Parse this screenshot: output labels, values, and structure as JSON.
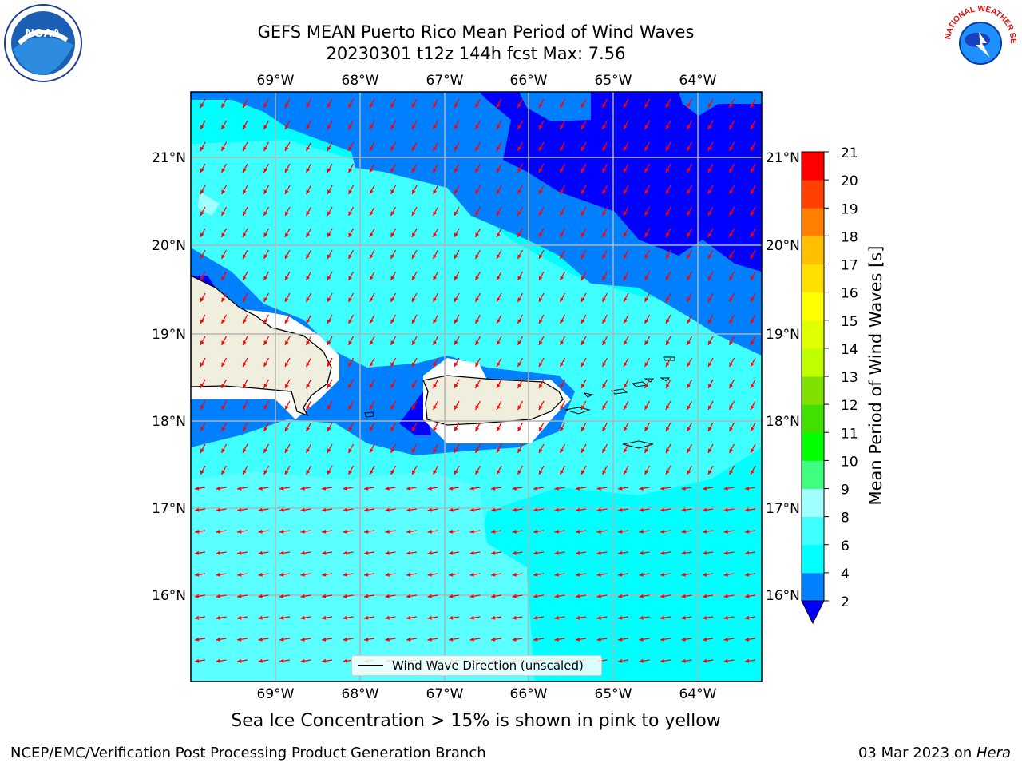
{
  "header": {
    "title_line1": "GEFS MEAN Puerto Rico Mean Period of Wind Waves",
    "title_line2": "20230301 t12z 144h fcst   Max: 7.56"
  },
  "logos": {
    "noaa_text": "NOAA",
    "nws_text": "NATIONAL WEATHER SERVICE"
  },
  "map": {
    "lon_labels": [
      "69°W",
      "68°W",
      "67°W",
      "66°W",
      "65°W",
      "64°W"
    ],
    "lat_labels": [
      "21°N",
      "20°N",
      "19°N",
      "18°N",
      "17°N",
      "16°N"
    ],
    "ocean_color": "#00ffff",
    "land_color": "#f0eedc",
    "legend_label": "Wind Wave Direction (unscaled)",
    "arrow_color": "#ff0000"
  },
  "colorbar": {
    "label": "Mean Period of Wind Waves [s]",
    "ticks": [
      "2",
      "4",
      "6",
      "8",
      "9",
      "10",
      "11",
      "12",
      "13",
      "14",
      "15",
      "16",
      "17",
      "18",
      "19",
      "20",
      "21"
    ],
    "colors": [
      "#0080ff",
      "#00ffff",
      "#40ffff",
      "#a0ffff",
      "#40ff80",
      "#00ff00",
      "#40e000",
      "#80e000",
      "#c0ff00",
      "#e0ff00",
      "#ffff00",
      "#ffe000",
      "#ffc000",
      "#ff8000",
      "#ff4000",
      "#ff0000"
    ],
    "under_color": "#0000ff"
  },
  "notes": {
    "sea_ice": "Sea Ice Concentration > 15% is shown in pink to yellow"
  },
  "footer": {
    "left": "NCEP/EMC/Verification Post Processing Product Generation Branch",
    "right_prefix": "03 Mar 2023 on ",
    "right_machine": "Hera"
  }
}
